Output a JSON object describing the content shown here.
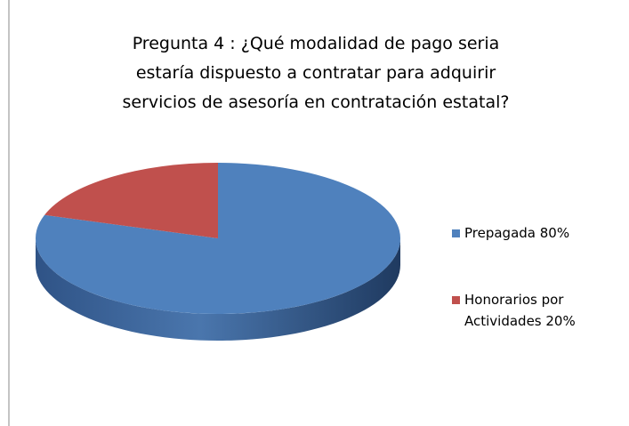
{
  "chart_data": {
    "type": "pie",
    "title": [
      "Pregunta 4 : ¿Qué modalidad de pago seria",
      "estaría dispuesto a contratar para adquirir",
      "servicios de asesoría en contratación estatal?"
    ],
    "categories": [
      "Prepagada 80%",
      "Honorarios por Actividades 20%"
    ],
    "values": [
      80,
      20
    ],
    "colors": [
      "#4f81bd",
      "#c0504d"
    ],
    "legend": "right"
  }
}
